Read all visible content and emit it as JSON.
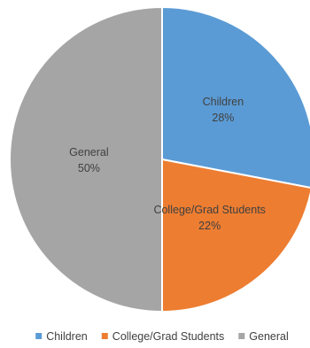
{
  "chart_data": {
    "type": "pie",
    "categories": [
      "Children",
      "College/Grad Students",
      "General"
    ],
    "values": [
      28,
      22,
      50
    ],
    "value_labels": [
      "28%",
      "22%",
      "50%"
    ],
    "colors": [
      "#5B9BD5",
      "#ED7D31",
      "#A5A5A5"
    ],
    "start_angle_deg": 0,
    "direction": "clockwise",
    "legend_position": "bottom",
    "title": ""
  }
}
